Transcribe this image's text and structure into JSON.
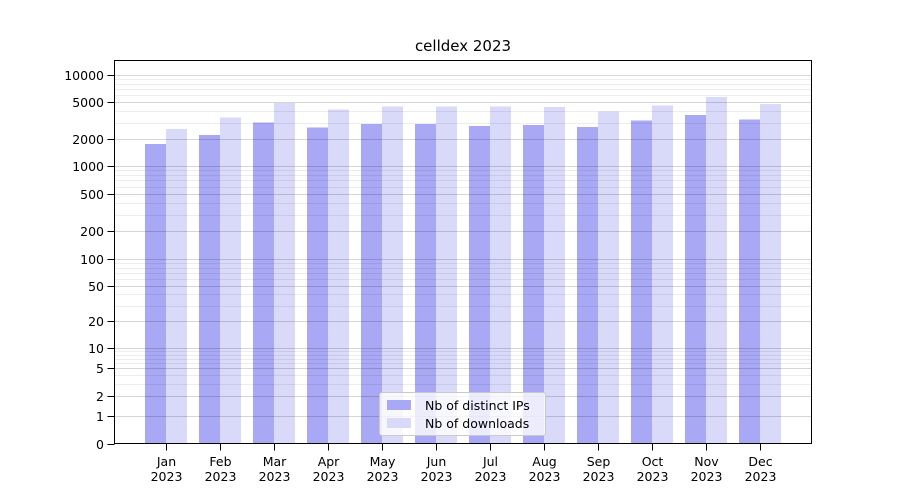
{
  "chart_data": {
    "type": "bar",
    "title": "celldex 2023",
    "scale": "symlog (log above 1, linear 0-1)",
    "grid": true,
    "legend_position": "lower center inside axes",
    "ylim": [
      0,
      15000
    ],
    "yticks": [
      0,
      1,
      2,
      5,
      10,
      20,
      50,
      100,
      200,
      500,
      1000,
      2000,
      5000,
      10000
    ],
    "categories": [
      "Jan 2023",
      "Feb 2023",
      "Mar 2023",
      "Apr 2023",
      "May 2023",
      "Jun 2023",
      "Jul 2023",
      "Aug 2023",
      "Sep 2023",
      "Oct 2023",
      "Nov 2023",
      "Dec 2023"
    ],
    "series": [
      {
        "name": "Nb of distinct IPs",
        "color": "#a8a8f4",
        "values": [
          1750,
          2200,
          3000,
          2650,
          2900,
          2880,
          2760,
          2820,
          2680,
          3150,
          3630,
          3260
        ]
      },
      {
        "name": "Nb of downloads",
        "color": "#d9d9f9",
        "values": [
          2550,
          3400,
          4900,
          4200,
          4500,
          4480,
          4500,
          4450,
          3950,
          4600,
          5730,
          4800
        ]
      }
    ]
  }
}
